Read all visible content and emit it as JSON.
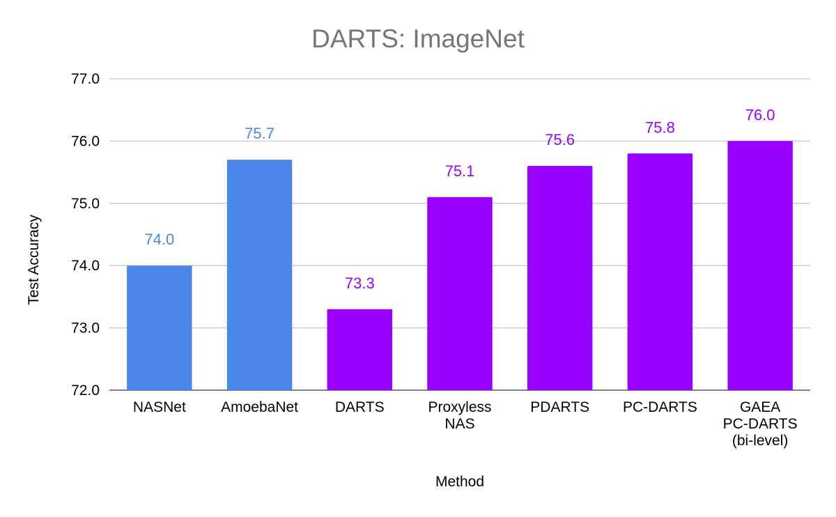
{
  "chart_data": {
    "type": "bar",
    "title": "DARTS: ImageNet",
    "xlabel": "Method",
    "ylabel": "Test Accuracy",
    "ylim": [
      72.0,
      77.0
    ],
    "yticks": [
      "72.0",
      "73.0",
      "74.0",
      "75.0",
      "76.0",
      "77.0"
    ],
    "grid": true,
    "categories": [
      [
        "NASNet"
      ],
      [
        "AmoebaNet"
      ],
      [
        "DARTS"
      ],
      [
        "Proxyless",
        "NAS"
      ],
      [
        "PDARTS"
      ],
      [
        "PC-DARTS"
      ],
      [
        "GAEA",
        "PC-DARTS",
        "(bi-level)"
      ]
    ],
    "values": [
      74.0,
      75.7,
      73.3,
      75.1,
      75.6,
      75.8,
      76.0
    ],
    "data_labels": [
      "74.0",
      "75.7",
      "73.3",
      "75.1",
      "75.6",
      "75.8",
      "76.0"
    ],
    "bar_colors": [
      "#4a86e8",
      "#4a86e8",
      "#9900ff",
      "#9900ff",
      "#9900ff",
      "#9900ff",
      "#9900ff"
    ]
  }
}
